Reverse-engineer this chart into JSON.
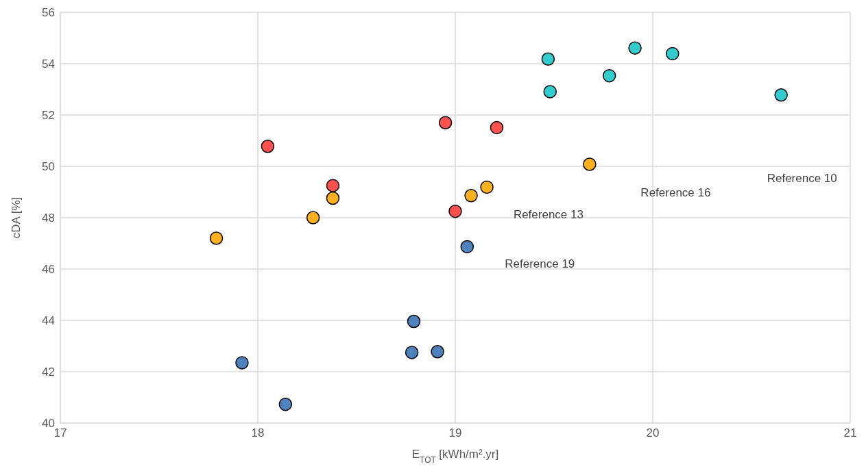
{
  "chart_data": {
    "type": "scatter",
    "xlabel": "E$_{TOT}$ [kWh/m².yr]",
    "ylabel": "cDA [%]",
    "xlim": [
      17,
      21
    ],
    "xticks": [
      17,
      18,
      19,
      20,
      21
    ],
    "ylim": [
      40,
      56
    ],
    "yticks": [
      40,
      42,
      44,
      46,
      48,
      50,
      52,
      54,
      56
    ],
    "grid": true,
    "marker": "circle",
    "legend": false,
    "series": [
      {
        "color": "#4f81bd",
        "x": [
          17.92,
          18.14,
          18.79,
          18.78,
          18.91,
          19.06
        ],
        "values": [
          42.35,
          40.73,
          43.96,
          42.75,
          42.78,
          46.87
        ]
      },
      {
        "color": "#ff5050",
        "x": [
          18.05,
          18.38,
          18.95,
          19.21,
          19.0
        ],
        "values": [
          50.78,
          49.25,
          51.7,
          51.51,
          48.25
        ]
      },
      {
        "color": "#ffb01f",
        "x": [
          17.79,
          18.28,
          18.38,
          19.08,
          19.16,
          19.68
        ],
        "values": [
          47.2,
          48.0,
          48.76,
          48.86,
          49.19,
          50.08
        ]
      },
      {
        "color": "#33cccc",
        "x": [
          19.47,
          19.48,
          19.78,
          19.91,
          20.1,
          20.65
        ],
        "values": [
          54.18,
          52.91,
          53.53,
          54.61,
          54.39,
          52.78
        ]
      }
    ],
    "annotations": [
      "Reference 19",
      "Reference 13",
      "Reference 16",
      "Reference 10"
    ]
  }
}
